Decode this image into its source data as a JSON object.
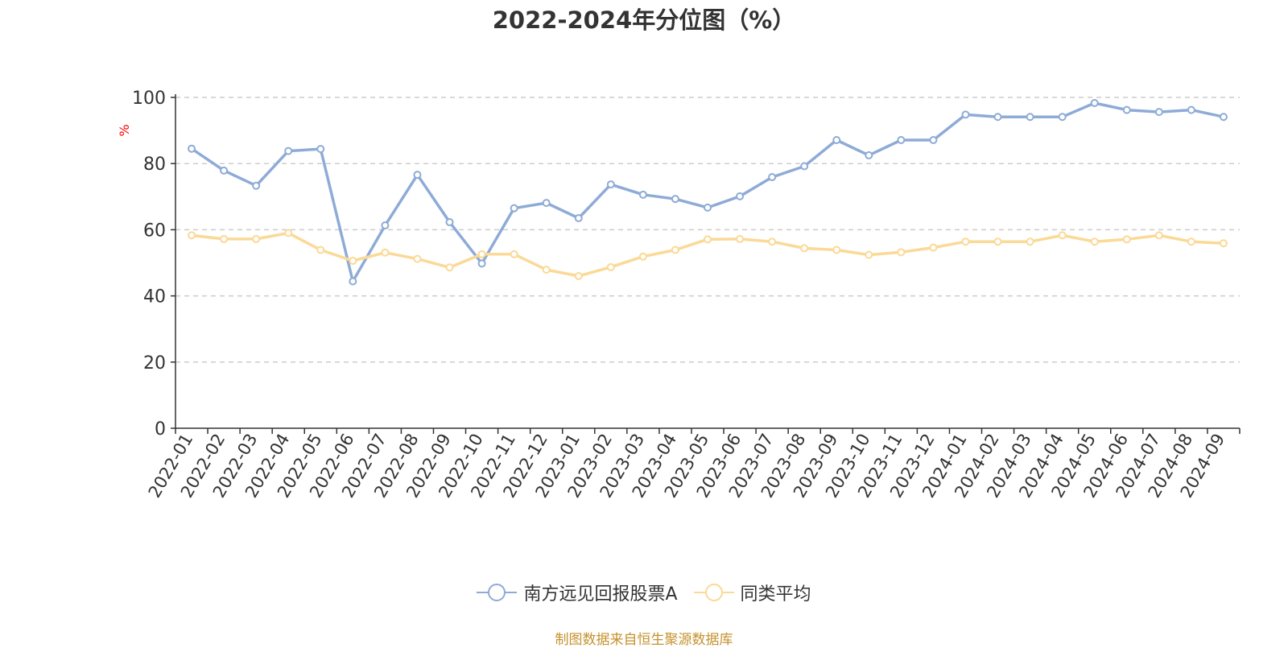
{
  "chart_data": {
    "type": "line",
    "title": "2022-2024年分位图（%）",
    "ylabel": "%",
    "xlabel": "",
    "ylim": [
      0,
      100
    ],
    "yticks": [
      0,
      20,
      40,
      60,
      80,
      100
    ],
    "grid": "horizontal dashed",
    "legend_position": "bottom",
    "categories": [
      "2022-01",
      "2022-02",
      "2022-03",
      "2022-04",
      "2022-05",
      "2022-06",
      "2022-07",
      "2022-08",
      "2022-09",
      "2022-10",
      "2022-11",
      "2022-12",
      "2023-01",
      "2023-02",
      "2023-03",
      "2023-04",
      "2023-05",
      "2023-06",
      "2023-07",
      "2023-08",
      "2023-09",
      "2023-10",
      "2023-11",
      "2023-12",
      "2024-01",
      "2024-02",
      "2024-03",
      "2024-04",
      "2024-05",
      "2024-06",
      "2024-07",
      "2024-08",
      "2024-09"
    ],
    "series": [
      {
        "name": "南方远见回报股票A",
        "color": "#8eabd7",
        "values": [
          84.5,
          77.9,
          73.3,
          83.8,
          84.4,
          44.4,
          61.3,
          76.6,
          62.3,
          49.8,
          66.5,
          68.1,
          63.5,
          73.7,
          70.6,
          69.3,
          66.7,
          70.1,
          75.9,
          79.2,
          87.1,
          82.5,
          87.1,
          87.1,
          94.8,
          94.1,
          94.1,
          94.1,
          98.3,
          96.2,
          95.6,
          96.2,
          94.1
        ]
      },
      {
        "name": "同类平均",
        "color": "#fbd996",
        "values": [
          58.3,
          57.2,
          57.2,
          59.0,
          53.9,
          50.6,
          53.1,
          51.2,
          48.6,
          52.6,
          52.6,
          47.9,
          46.0,
          48.7,
          51.9,
          53.9,
          57.1,
          57.2,
          56.4,
          54.4,
          53.9,
          52.4,
          53.2,
          54.6,
          56.4,
          56.4,
          56.4,
          58.3,
          56.4,
          57.1,
          58.3,
          56.4,
          55.9
        ]
      }
    ]
  },
  "source_text": "制图数据来自恒生聚源数据库",
  "source_color": "#c5922e",
  "ylabel_color": "#ff0000"
}
